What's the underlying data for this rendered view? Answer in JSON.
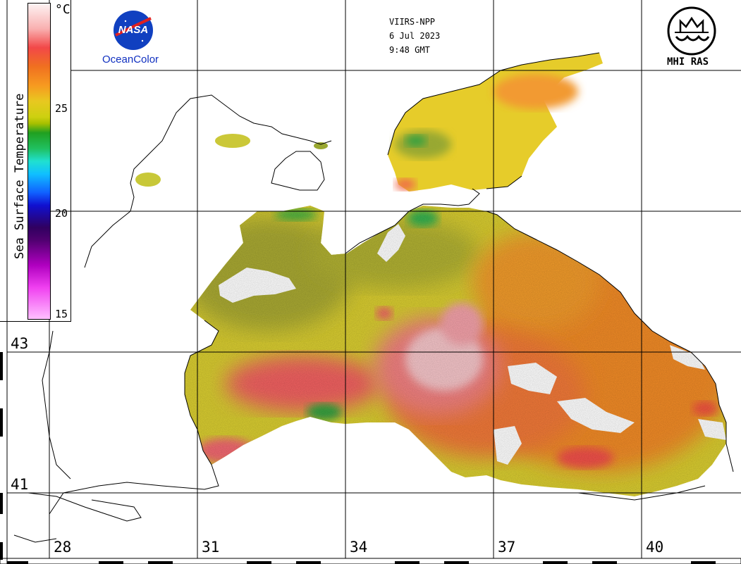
{
  "header": {
    "sensor": "VIIRS-NPP",
    "date": "6 Jul 2023",
    "time": "9:48 GMT"
  },
  "logos": {
    "nasa_text": "NASA",
    "oceancolor": "OceanColor",
    "mhi": "MHI RAS"
  },
  "colorbar": {
    "title": "Sea Surface Temperature",
    "unit": "°C",
    "ticks": [
      "25",
      "20",
      "15"
    ]
  },
  "grid": {
    "lat_labels": [
      "43",
      "41"
    ],
    "lon_labels": [
      "28",
      "31",
      "34",
      "37",
      "40"
    ]
  },
  "colors": {
    "warm_pink": "#f6c4c8",
    "red": "#f05a50",
    "orange": "#f59a2c",
    "yellow": "#dcd028",
    "olive": "#b0b030",
    "green": "#28a040",
    "land_outline": "#000000"
  }
}
